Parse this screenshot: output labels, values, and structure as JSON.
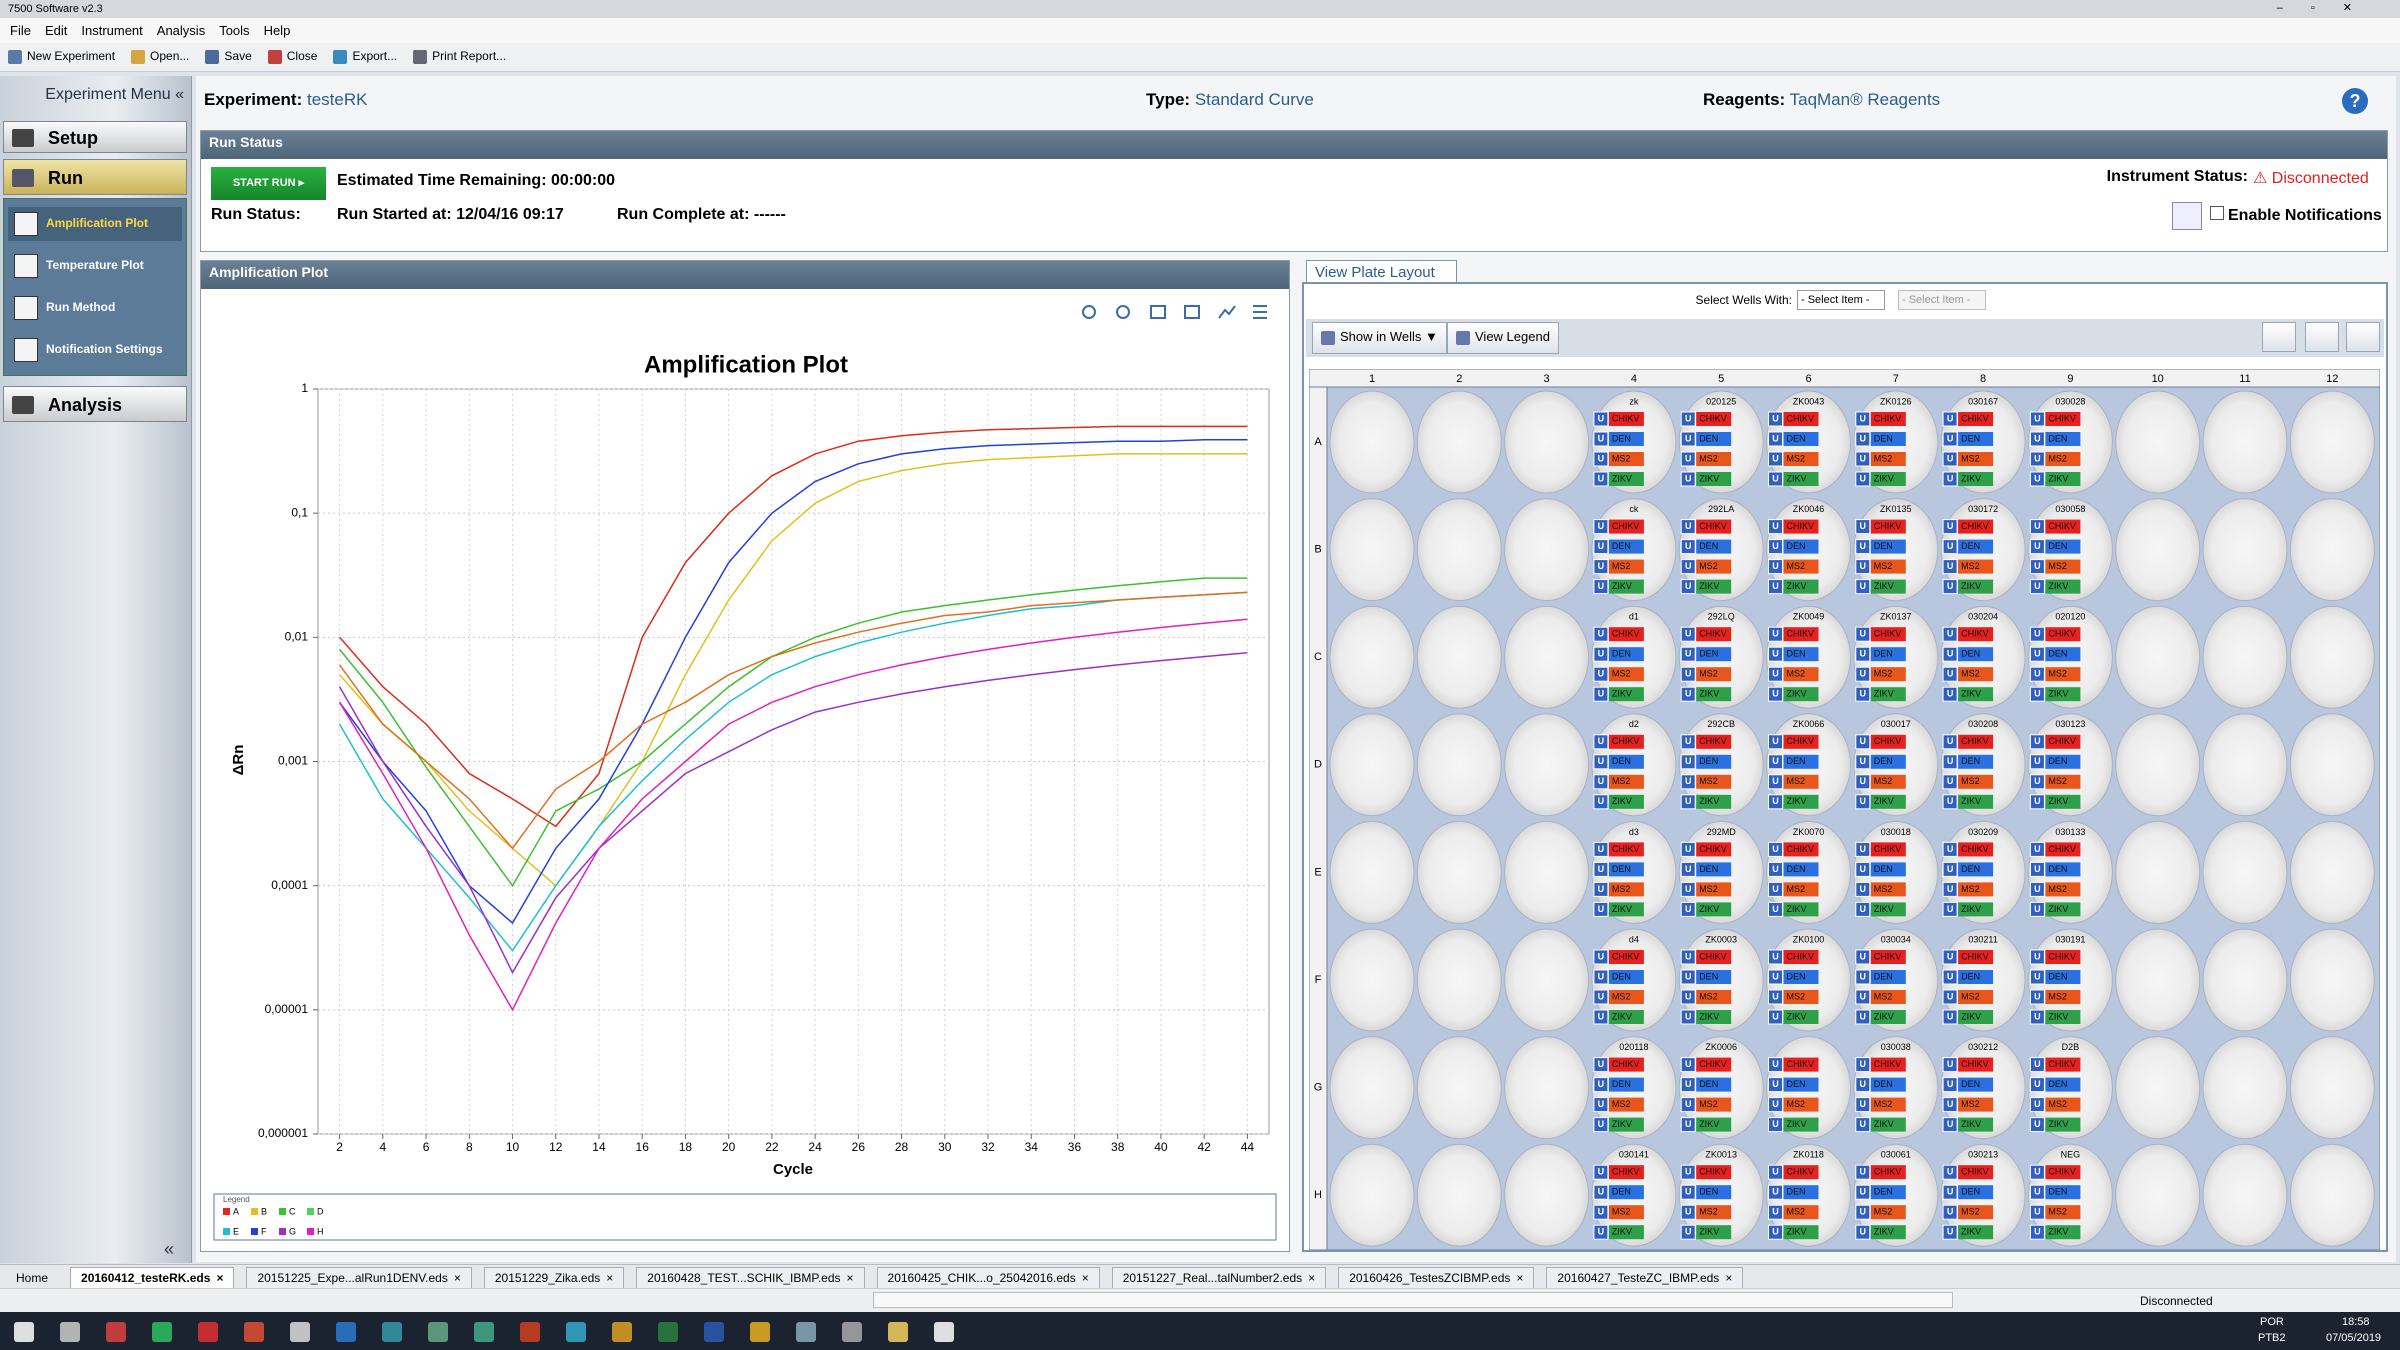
{
  "window": {
    "title": "7500 Software v2.3"
  },
  "menu": [
    "File",
    "Edit",
    "Instrument",
    "Analysis",
    "Tools",
    "Help"
  ],
  "toolbar": [
    "New Experiment",
    "Open...",
    "Save",
    "Close",
    "Export...",
    "Print Report..."
  ],
  "sidebar": {
    "title": "Experiment Menu",
    "setup": "Setup",
    "run": "Run",
    "run_items": [
      "Amplification Plot",
      "Temperature Plot",
      "Run Method",
      "Notification Settings"
    ],
    "analysis": "Analysis"
  },
  "experiment": {
    "experiment_label": "Experiment:",
    "experiment": "testeRK",
    "type_label": "Type:",
    "type": "Standard Curve",
    "reagents_label": "Reagents:",
    "reagents": "TaqMan® Reagents"
  },
  "run_status": {
    "header": "Run Status",
    "start_button": "START RUN",
    "time_remaining_label": "Estimated Time Remaining:",
    "time_remaining": "00:00:00",
    "status_label": "Run Status:",
    "started_label": "Run Started at:",
    "started": "12/04/16 09:17",
    "complete_label": "Run Complete at:",
    "complete": "------",
    "instrument_label": "Instrument Status:",
    "instrument": "Disconnected",
    "notifications": "Enable Notifications"
  },
  "amplification_panel": {
    "header": "Amplification Plot"
  },
  "chart_data": {
    "type": "line",
    "title": "Amplification Plot",
    "x_label": "Cycle",
    "y_label": "ΔRn",
    "log_y": true,
    "grid": true,
    "xlim": [
      1,
      45
    ],
    "ylim": [
      1e-06,
      1
    ],
    "xticks": [
      2,
      4,
      6,
      8,
      10,
      12,
      14,
      16,
      18,
      20,
      22,
      24,
      26,
      28,
      30,
      32,
      34,
      36,
      38,
      40,
      42,
      44
    ],
    "yticks": [
      1,
      {
        "value": 0.1,
        "label": "0,1"
      },
      {
        "value": 0.01,
        "label": "0,01"
      },
      {
        "value": 0.001,
        "label": "0,001"
      },
      {
        "value": 0.0001,
        "label": "0,0001"
      },
      {
        "value": 1e-05,
        "label": "0,00001"
      },
      {
        "value": 1e-06,
        "label": "0,000001"
      }
    ],
    "x": [
      2,
      4,
      6,
      8,
      10,
      12,
      14,
      16,
      18,
      20,
      22,
      24,
      26,
      28,
      30,
      32,
      34,
      36,
      38,
      40,
      42,
      44
    ],
    "series": [
      {
        "color": "#e02a1a",
        "values": [
          0.01,
          0.004,
          0.002,
          0.0008,
          0.0005,
          0.0003,
          0.0008,
          0.01,
          0.04,
          0.1,
          0.2,
          0.3,
          0.38,
          0.42,
          0.45,
          0.47,
          0.48,
          0.49,
          0.5,
          0.5,
          0.5,
          0.5
        ]
      },
      {
        "color": "#e0c020",
        "values": [
          0.005,
          0.002,
          0.001,
          0.0004,
          0.0002,
          0.0001,
          0.0003,
          0.001,
          0.005,
          0.02,
          0.06,
          0.12,
          0.18,
          0.22,
          0.25,
          0.27,
          0.28,
          0.29,
          0.3,
          0.3,
          0.3,
          0.3
        ]
      },
      {
        "color": "#3cc030",
        "values": [
          0.008,
          0.003,
          0.0009,
          0.0003,
          0.0001,
          0.0004,
          0.0006,
          0.001,
          0.002,
          0.004,
          0.007,
          0.01,
          0.013,
          0.016,
          0.018,
          0.02,
          0.022,
          0.024,
          0.026,
          0.028,
          0.03,
          0.03
        ]
      },
      {
        "color": "#2040e0",
        "values": [
          0.003,
          0.001,
          0.0004,
          0.0001,
          5e-05,
          0.0002,
          0.0005,
          0.002,
          0.01,
          0.04,
          0.1,
          0.18,
          0.25,
          0.3,
          0.33,
          0.35,
          0.36,
          0.37,
          0.38,
          0.38,
          0.39,
          0.39
        ]
      },
      {
        "color": "#20c0d0",
        "values": [
          0.002,
          0.0005,
          0.0002,
          8e-05,
          3e-05,
          0.0001,
          0.0003,
          0.0007,
          0.0015,
          0.003,
          0.005,
          0.007,
          0.009,
          0.011,
          0.013,
          0.015,
          0.017,
          0.018,
          0.02,
          0.021,
          0.022,
          0.023
        ]
      },
      {
        "color": "#e07020",
        "values": [
          0.006,
          0.002,
          0.001,
          0.0005,
          0.0002,
          0.0006,
          0.001,
          0.002,
          0.003,
          0.005,
          0.007,
          0.009,
          0.011,
          0.013,
          0.015,
          0.016,
          0.018,
          0.019,
          0.02,
          0.021,
          0.022,
          0.023
        ]
      },
      {
        "color": "#9a30c8",
        "values": [
          0.004,
          0.001,
          0.0003,
          0.0001,
          2e-05,
          8e-05,
          0.0002,
          0.0004,
          0.0008,
          0.0012,
          0.0018,
          0.0025,
          0.003,
          0.0035,
          0.004,
          0.0045,
          0.005,
          0.0055,
          0.006,
          0.0065,
          0.007,
          0.0075
        ]
      },
      {
        "color": "#e020c0",
        "values": [
          0.003,
          0.0008,
          0.0002,
          4e-05,
          1e-05,
          5e-05,
          0.0002,
          0.0005,
          0.001,
          0.002,
          0.003,
          0.004,
          0.005,
          0.006,
          0.007,
          0.008,
          0.009,
          0.01,
          0.011,
          0.012,
          0.013,
          0.014
        ]
      }
    ],
    "legend": {
      "title": "Legend",
      "entries": [
        {
          "label": "A",
          "color": "#e02a1a"
        },
        {
          "label": "B",
          "color": "#e0c020"
        },
        {
          "label": "C",
          "color": "#3cc030"
        },
        {
          "label": "D",
          "color": "#50d060"
        },
        {
          "label": "E",
          "color": "#20c0d0"
        },
        {
          "label": "F",
          "color": "#2040e0"
        },
        {
          "label": "G",
          "color": "#9a30c8"
        },
        {
          "label": "H",
          "color": "#e020c0"
        }
      ]
    }
  },
  "plate": {
    "tab": "View Plate Layout",
    "select_label": "Select Wells With:",
    "select_placeholder": "- Select Item -",
    "show_in_wells": "Show in Wells",
    "view_legend": "View Legend",
    "columns": [
      1,
      2,
      3,
      4,
      5,
      6,
      7,
      8,
      9,
      10,
      11,
      12
    ],
    "rows": [
      "A",
      "B",
      "C",
      "D",
      "E",
      "F",
      "G",
      "H"
    ],
    "task": "U",
    "targets": [
      {
        "name": "CHIKV",
        "color": "#e8201e"
      },
      {
        "name": "DEN",
        "color": "#2a70e0"
      },
      {
        "name": "MS2",
        "color": "#e8561c"
      },
      {
        "name": "ZIKV",
        "color": "#2ea04a"
      }
    ],
    "samples": [
      [
        null,
        null,
        null,
        "zk",
        "020125",
        "ZK0043",
        "ZK0126",
        "030167",
        "030028",
        null,
        null,
        null
      ],
      [
        null,
        null,
        null,
        "ck",
        "292LA",
        "ZK0046",
        "ZK0135",
        "030172",
        "030058",
        null,
        null,
        null
      ],
      [
        null,
        null,
        null,
        "d1",
        "292LQ",
        "ZK0049",
        "ZK0137",
        "030204",
        "020120",
        null,
        null,
        null
      ],
      [
        null,
        null,
        null,
        "d2",
        "292CB",
        "ZK0066",
        "030017",
        "030208",
        "030123",
        null,
        null,
        null
      ],
      [
        null,
        null,
        null,
        "d3",
        "292MD",
        "ZK0070",
        "030018",
        "030209",
        "030133",
        null,
        null,
        null
      ],
      [
        null,
        null,
        null,
        "d4",
        "ZK0003",
        "ZK0100",
        "030034",
        "030211",
        "030191",
        null,
        null,
        null
      ],
      [
        null,
        null,
        null,
        "020118",
        "ZK0006",
        null,
        "030038",
        "030212",
        "D2B",
        null,
        null,
        null
      ],
      [
        null,
        null,
        null,
        "030141",
        "ZK0013",
        "ZK0118",
        "030061",
        "030213",
        "NEG",
        null,
        null,
        null
      ]
    ]
  },
  "tabs": [
    "Home",
    "20160412_testeRK.eds",
    "20151225_Expe...alRun1DENV.eds",
    "20151229_Zika.eds",
    "20160428_TEST...SCHIK_IBMP.eds",
    "20160425_CHIK...o_25042016.eds",
    "20151227_Real...talNumber2.eds",
    "20160426_TestesZCIBMP.eds",
    "20160427_TesteZC_IBMP.eds"
  ],
  "status_bar": "Disconnected",
  "taskbar": {
    "language": "POR",
    "keyboard": "PTB2",
    "time": "18:58",
    "date": "07/05/2019"
  }
}
